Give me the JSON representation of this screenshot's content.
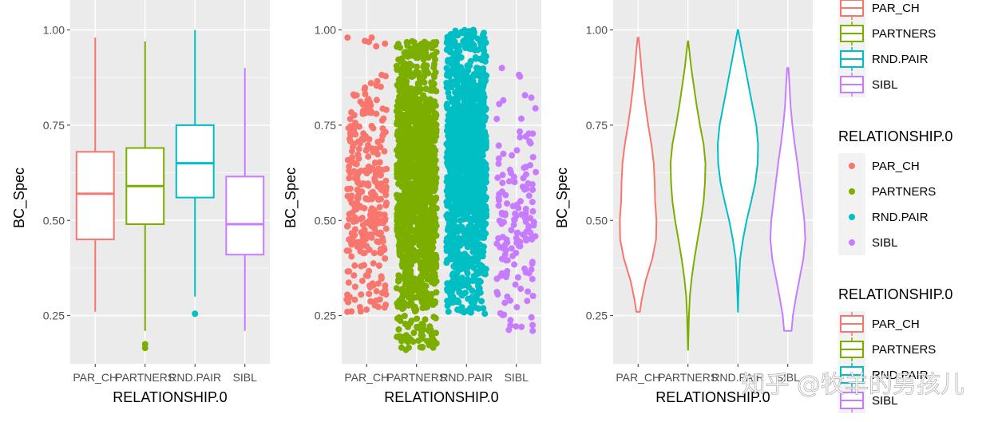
{
  "colors": {
    "PAR_CH": "#F8766D",
    "PARTNERS": "#7CAE00",
    "RND.PAIR": "#00BFC4",
    "SIBL": "#C77CFF",
    "panel_bg": "#EBEBEB",
    "grid": "#FFFFFF"
  },
  "watermark": "知乎 @牧羊的男孩儿",
  "legends": [
    {
      "title": "",
      "type": "box",
      "entries": [
        "PAR_CH",
        "PARTNERS",
        "RND.PAIR",
        "SIBL"
      ]
    },
    {
      "title": "RELATIONSHIP.0",
      "type": "point",
      "entries": [
        "PAR_CH",
        "PARTNERS",
        "RND.PAIR",
        "SIBL"
      ]
    },
    {
      "title": "RELATIONSHIP.0",
      "type": "box",
      "entries": [
        "PAR_CH",
        "PARTNERS",
        "RND.PAIR",
        "SIBL"
      ]
    }
  ],
  "chart_data": [
    {
      "type": "box",
      "xlabel": "RELATIONSHIP.0",
      "ylabel": "BC_Spec",
      "ylim": [
        0.15,
        1.0
      ],
      "yticks": [
        "0.25",
        "0.50",
        "0.75",
        "1.00"
      ],
      "categories": [
        "PAR_CH",
        "PARTNERS",
        "RND.PAIR",
        "SIBL"
      ],
      "boxes": [
        {
          "name": "PAR_CH",
          "lower_whisker": 0.26,
          "q1": 0.45,
          "median": 0.57,
          "q3": 0.68,
          "upper_whisker": 0.98,
          "outliers": []
        },
        {
          "name": "PARTNERS",
          "lower_whisker": 0.21,
          "q1": 0.49,
          "median": 0.59,
          "q3": 0.69,
          "upper_whisker": 0.97,
          "outliers": [
            0.175,
            0.165
          ]
        },
        {
          "name": "RND.PAIR",
          "lower_whisker": 0.3,
          "q1": 0.56,
          "median": 0.65,
          "q3": 0.75,
          "upper_whisker": 1.0,
          "outliers": [
            0.255
          ]
        },
        {
          "name": "SIBL",
          "lower_whisker": 0.21,
          "q1": 0.41,
          "median": 0.49,
          "q3": 0.615,
          "upper_whisker": 0.9,
          "outliers": []
        }
      ]
    },
    {
      "type": "scatter",
      "xlabel": "RELATIONSHIP.0",
      "ylabel": "BC_Spec",
      "ylim": [
        0.15,
        1.0
      ],
      "yticks": [
        "0.25",
        "0.50",
        "0.75",
        "1.00"
      ],
      "categories": [
        "PAR_CH",
        "PARTNERS",
        "RND.PAIR",
        "SIBL"
      ],
      "jitter_groups": [
        {
          "name": "PAR_CH",
          "min": 0.26,
          "max": 0.98,
          "center": 0.57,
          "count": 320
        },
        {
          "name": "PARTNERS",
          "min": 0.16,
          "max": 0.97,
          "center": 0.59,
          "count": 1400
        },
        {
          "name": "RND.PAIR",
          "min": 0.255,
          "max": 1.0,
          "center": 0.65,
          "count": 1400
        },
        {
          "name": "SIBL",
          "min": 0.21,
          "max": 0.9,
          "center": 0.49,
          "count": 150
        }
      ]
    },
    {
      "type": "violin",
      "xlabel": "RELATIONSHIP.0",
      "ylabel": "BC_Spec",
      "ylim": [
        0.15,
        1.0
      ],
      "yticks": [
        "0.25",
        "0.50",
        "0.75",
        "1.00"
      ],
      "categories": [
        "PAR_CH",
        "PARTNERS",
        "RND.PAIR",
        "SIBL"
      ],
      "violins": [
        {
          "name": "PAR_CH",
          "profile": [
            [
              0.26,
              0.08
            ],
            [
              0.29,
              0.15
            ],
            [
              0.34,
              0.32
            ],
            [
              0.4,
              0.62
            ],
            [
              0.45,
              0.78
            ],
            [
              0.5,
              0.8
            ],
            [
              0.55,
              0.74
            ],
            [
              0.6,
              0.72
            ],
            [
              0.65,
              0.68
            ],
            [
              0.7,
              0.58
            ],
            [
              0.75,
              0.44
            ],
            [
              0.8,
              0.32
            ],
            [
              0.85,
              0.22
            ],
            [
              0.9,
              0.14
            ],
            [
              0.95,
              0.07
            ],
            [
              0.98,
              0.02
            ]
          ]
        },
        {
          "name": "PARTNERS",
          "profile": [
            [
              0.16,
              0.0
            ],
            [
              0.2,
              0.02
            ],
            [
              0.25,
              0.04
            ],
            [
              0.3,
              0.08
            ],
            [
              0.35,
              0.16
            ],
            [
              0.4,
              0.28
            ],
            [
              0.45,
              0.42
            ],
            [
              0.5,
              0.56
            ],
            [
              0.55,
              0.68
            ],
            [
              0.6,
              0.74
            ],
            [
              0.65,
              0.76
            ],
            [
              0.7,
              0.68
            ],
            [
              0.75,
              0.52
            ],
            [
              0.8,
              0.38
            ],
            [
              0.85,
              0.26
            ],
            [
              0.9,
              0.14
            ],
            [
              0.95,
              0.05
            ],
            [
              0.97,
              0.01
            ]
          ]
        },
        {
          "name": "RND.PAIR",
          "profile": [
            [
              0.26,
              0.0
            ],
            [
              0.3,
              0.02
            ],
            [
              0.35,
              0.05
            ],
            [
              0.4,
              0.1
            ],
            [
              0.45,
              0.22
            ],
            [
              0.5,
              0.38
            ],
            [
              0.55,
              0.58
            ],
            [
              0.6,
              0.76
            ],
            [
              0.65,
              0.86
            ],
            [
              0.7,
              0.88
            ],
            [
              0.75,
              0.8
            ],
            [
              0.8,
              0.64
            ],
            [
              0.85,
              0.48
            ],
            [
              0.9,
              0.32
            ],
            [
              0.95,
              0.16
            ],
            [
              1.0,
              0.01
            ]
          ]
        },
        {
          "name": "SIBL",
          "profile": [
            [
              0.21,
              0.16
            ],
            [
              0.25,
              0.22
            ],
            [
              0.3,
              0.36
            ],
            [
              0.35,
              0.52
            ],
            [
              0.4,
              0.68
            ],
            [
              0.45,
              0.76
            ],
            [
              0.5,
              0.72
            ],
            [
              0.55,
              0.62
            ],
            [
              0.6,
              0.52
            ],
            [
              0.65,
              0.42
            ],
            [
              0.7,
              0.3
            ],
            [
              0.75,
              0.2
            ],
            [
              0.8,
              0.12
            ],
            [
              0.85,
              0.08
            ],
            [
              0.9,
              0.03
            ]
          ]
        }
      ]
    }
  ]
}
